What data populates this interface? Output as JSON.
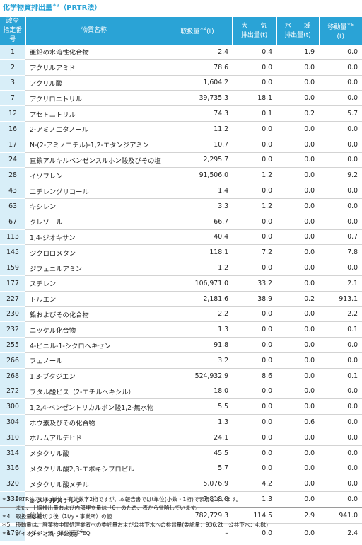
{
  "title": "化学物質排出量",
  "title_sup": "＊3",
  "title_suffix": "（PRTR法）",
  "header": {
    "no_line1": "政令",
    "no_line2": "指定番号",
    "name": "物質名称",
    "handled": "取扱量",
    "handled_sup": "＊4",
    "handled_unit": "(t)",
    "air_line1": "大　　気",
    "air_line2": "排出量(t)",
    "water_line1": "水　　域",
    "water_line2": "排出量(t)",
    "transfer_line1": "移動量",
    "transfer_sup": "＊5",
    "transfer_line2": "(t)"
  },
  "rows": [
    {
      "no": "1",
      "name": "亜鉛の水溶性化合物",
      "handled": "2.4",
      "air": "0.4",
      "water": "1.9",
      "transfer": "0.0"
    },
    {
      "no": "2",
      "name": "アクリルアミド",
      "handled": "78.6",
      "air": "0.0",
      "water": "0.0",
      "transfer": "0.0"
    },
    {
      "no": "3",
      "name": "アクリル酸",
      "handled": "1,604.2",
      "air": "0.0",
      "water": "0.0",
      "transfer": "0.0"
    },
    {
      "no": "7",
      "name": "アクリロニトリル",
      "handled": "39,735.3",
      "air": "18.1",
      "water": "0.0",
      "transfer": "0.0"
    },
    {
      "no": "12",
      "name": "アセトニトリル",
      "handled": "74.3",
      "air": "0.1",
      "water": "0.2",
      "transfer": "5.7"
    },
    {
      "no": "16",
      "name": "2-アミノエタノール",
      "handled": "11.2",
      "air": "0.0",
      "water": "0.0",
      "transfer": "0.0"
    },
    {
      "no": "17",
      "name": "N-(2-アミノエチル)-1,2-エタンジアミン",
      "handled": "10.7",
      "air": "0.0",
      "water": "0.0",
      "transfer": "0.0"
    },
    {
      "no": "24",
      "name": "直鎖アルキルベンゼンスルホン酸及びその塩",
      "handled": "2,295.7",
      "air": "0.0",
      "water": "0.0",
      "transfer": "0.0"
    },
    {
      "no": "28",
      "name": "イソプレン",
      "handled": "91,506.0",
      "air": "1.2",
      "water": "0.0",
      "transfer": "9.2"
    },
    {
      "no": "43",
      "name": "エチレングリコール",
      "handled": "1.4",
      "air": "0.0",
      "water": "0.0",
      "transfer": "0.0"
    },
    {
      "no": "63",
      "name": "キシレン",
      "handled": "3.3",
      "air": "1.2",
      "water": "0.0",
      "transfer": "0.0"
    },
    {
      "no": "67",
      "name": "クレゾール",
      "handled": "66.7",
      "air": "0.0",
      "water": "0.0",
      "transfer": "0.0"
    },
    {
      "no": "113",
      "name": "1,4-ジオキサン",
      "handled": "40.4",
      "air": "0.0",
      "water": "0.0",
      "transfer": "0.7"
    },
    {
      "no": "145",
      "name": "ジクロロメタン",
      "handled": "118.1",
      "air": "7.2",
      "water": "0.0",
      "transfer": "7.8"
    },
    {
      "no": "159",
      "name": "ジフェニルアミン",
      "handled": "1.2",
      "air": "0.0",
      "water": "0.0",
      "transfer": "0.0"
    },
    {
      "no": "177",
      "name": "スチレン",
      "handled": "106,971.0",
      "air": "33.2",
      "water": "0.0",
      "transfer": "2.1"
    },
    {
      "no": "227",
      "name": "トルエン",
      "handled": "2,181.6",
      "air": "38.9",
      "water": "0.2",
      "transfer": "913.1"
    },
    {
      "no": "230",
      "name": "鉛およびその化合物",
      "handled": "2.2",
      "air": "0.0",
      "water": "0.0",
      "transfer": "2.2"
    },
    {
      "no": "232",
      "name": "ニッケル化合物",
      "handled": "1.3",
      "air": "0.0",
      "water": "0.0",
      "transfer": "0.1"
    },
    {
      "no": "255",
      "name": "4-ビニル-1-シクロヘキセン",
      "handled": "91.8",
      "air": "0.0",
      "water": "0.0",
      "transfer": "0.0"
    },
    {
      "no": "266",
      "name": "フェノール",
      "handled": "3.2",
      "air": "0.0",
      "water": "0.0",
      "transfer": "0.0"
    },
    {
      "no": "268",
      "name": "1,3-ブタジエン",
      "handled": "524,932.9",
      "air": "8.6",
      "water": "0.0",
      "transfer": "0.1"
    },
    {
      "no": "272",
      "name": "フタル酸ビス（2-エチルヘキシル）",
      "handled": "18.0",
      "air": "0.0",
      "water": "0.0",
      "transfer": "0.0"
    },
    {
      "no": "300",
      "name": "1,2,4-ベンゼントリカルボン酸1,2-無水物",
      "handled": "5.5",
      "air": "0.0",
      "water": "0.0",
      "transfer": "0.0"
    },
    {
      "no": "304",
      "name": "ホウ素及びその化合物",
      "handled": "1.3",
      "air": "0.0",
      "water": "0.6",
      "transfer": "0.0"
    },
    {
      "no": "310",
      "name": "ホルムアルデヒド",
      "handled": "24.1",
      "air": "0.0",
      "water": "0.0",
      "transfer": "0.0"
    },
    {
      "no": "314",
      "name": "メタクリル酸",
      "handled": "45.5",
      "air": "0.0",
      "water": "0.0",
      "transfer": "0.0"
    },
    {
      "no": "316",
      "name": "メタクリル酸2,3-エポキシプロピル",
      "handled": "5.7",
      "air": "0.0",
      "water": "0.0",
      "transfer": "0.0"
    },
    {
      "no": "320",
      "name": "メタクリル酸メチル",
      "handled": "5,076.9",
      "air": "4.2",
      "water": "0.0",
      "transfer": "0.0"
    },
    {
      "no": "335",
      "name": "α-メチルスチレン",
      "handled": "7,818.8",
      "air": "1.3",
      "water": "0.0",
      "transfer": "0.0"
    }
  ],
  "total": {
    "no": "",
    "name": "総計",
    "handled": "782,729.3",
    "air": "114.5",
    "water": "2.9",
    "transfer": "941.0"
  },
  "dioxin": {
    "no": "179",
    "name": "ダイオキシン類",
    "name_sup": "＊6",
    "handled": "–",
    "air": "0.0",
    "water": "0.0",
    "transfer": "2.4"
  },
  "notes": [
    {
      "mark": "＊3",
      "text": "PRTR法ではkg単位・有効数字2桁ですが、本報告書ではt単位(小数・1桁)で表示しています。"
    },
    {
      "mark": "",
      "text": "また、土壌排出量および内部埋立量は「0」のため、表から省略しています。"
    },
    {
      "mark": "＊4",
      "text": "取扱量は裾切り後（1t/y・事業所）の値"
    },
    {
      "mark": "＊5",
      "text": "移動量は、廃棄物中間処理業者への委託量および公共下水への排出量(委託量：936.2t　公共下水：4.8t)"
    },
    {
      "mark": "＊6",
      "text": "ダイオキシン類　単位mg-TEQ"
    }
  ]
}
